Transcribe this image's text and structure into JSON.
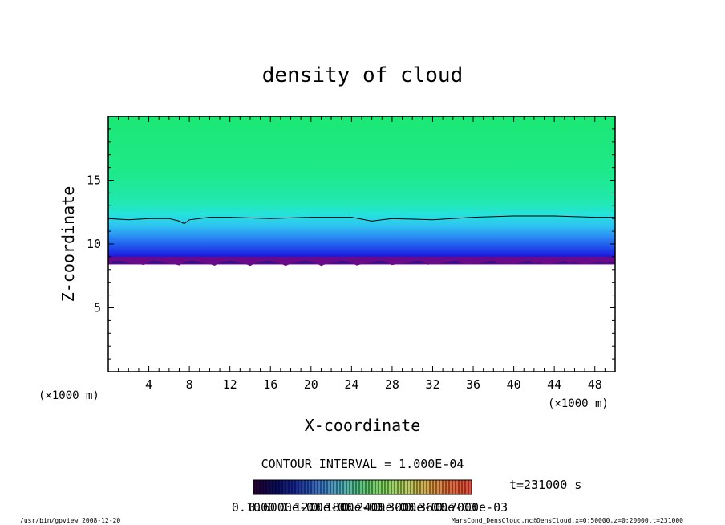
{
  "chart_data": {
    "type": "heatmap",
    "title": "density of cloud",
    "xlabel": "X-coordinate",
    "ylabel": "Z-coordinate",
    "x_unit": "(×1000 m)",
    "y_unit": "(×1000 m)",
    "xlim": [
      0,
      50
    ],
    "ylim": [
      0,
      20
    ],
    "x_ticks": [
      4,
      8,
      12,
      16,
      20,
      24,
      28,
      32,
      36,
      40,
      44,
      48
    ],
    "y_ticks": [
      5,
      10,
      15
    ],
    "cloud_base_z": 8.4,
    "contour_line": {
      "x": [
        0,
        2,
        4,
        6,
        7,
        7.5,
        8,
        9,
        10,
        12,
        16,
        20,
        24,
        26,
        27,
        28,
        32,
        36,
        40,
        44,
        48,
        50
      ],
      "z": [
        12.0,
        11.9,
        12.0,
        12.0,
        11.8,
        11.6,
        11.9,
        12.0,
        12.1,
        12.1,
        12.0,
        12.1,
        12.1,
        11.8,
        11.9,
        12.0,
        11.9,
        12.1,
        12.2,
        12.2,
        12.1,
        12.1
      ]
    },
    "colors": [
      "#6a0a8a",
      "#1b0c8c",
      "#1d1ee0",
      "#1f54ee",
      "#2b8ef3",
      "#2fc3f2",
      "#25e3dc",
      "#21e8b0",
      "#1ee98a",
      "#1ce874"
    ],
    "contour_interval": "CONTOUR INTERVAL = 1.000E-04",
    "colorbar_labels": [
      "0.1000",
      "0.6000e-03",
      "0.1200e-03",
      "0.1800e-03",
      "0.2400e-03",
      "0.3000e-03",
      "0.3600e-03",
      "0.7000e-03"
    ],
    "time": "t=231000 s",
    "footer_left": "/usr/bin/gpview   2008-12-20",
    "footer_right": "MarsCond_DensCloud.nc@DensCloud,x=0:50000,z=0:20000,t=231000"
  }
}
